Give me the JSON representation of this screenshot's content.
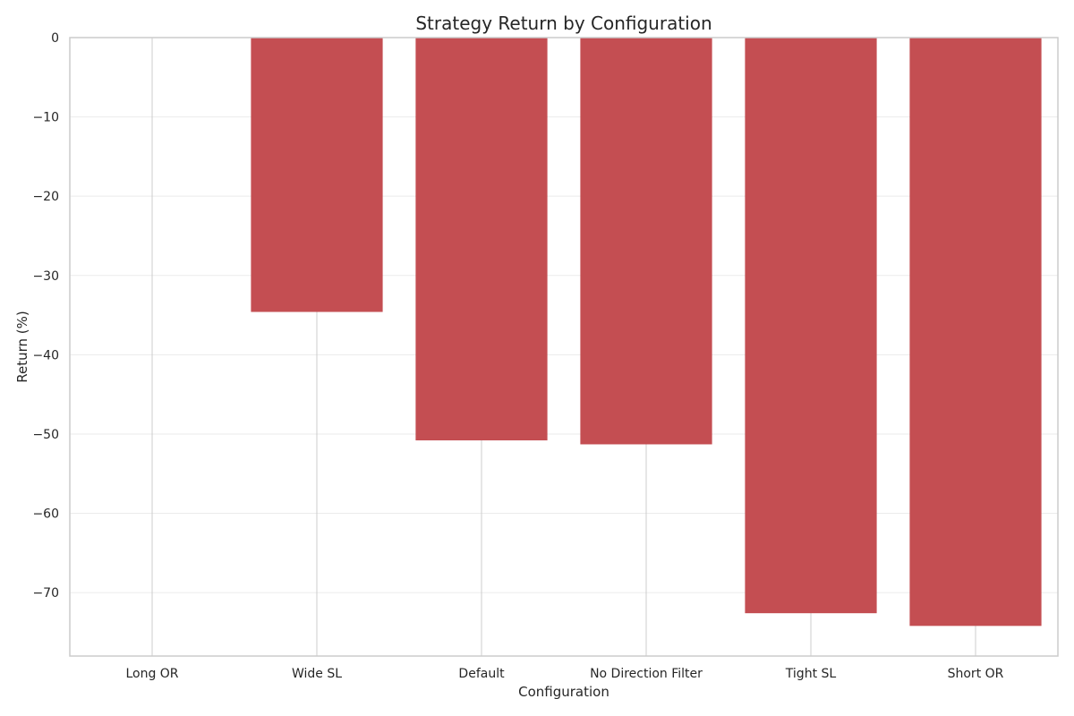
{
  "chart_data": {
    "type": "bar",
    "title": "Strategy Return by Configuration",
    "xlabel": "Configuration",
    "ylabel": "Return (%)",
    "categories": [
      "Long OR",
      "Wide SL",
      "Default",
      "No Direction Filter",
      "Tight SL",
      "Short OR"
    ],
    "values": [
      0,
      -34.6,
      -50.8,
      -51.3,
      -72.6,
      -74.2
    ],
    "ylim": [
      -78,
      0
    ],
    "yticks": [
      0,
      -10,
      -20,
      -30,
      -40,
      -50,
      -60,
      -70
    ],
    "ytick_labels": [
      "0",
      "−10",
      "−20",
      "−30",
      "−40",
      "−50",
      "−60",
      "−70"
    ],
    "grid": true,
    "legend": "none",
    "colors": {
      "bar": "#c44e52",
      "grid": "#ebebeb",
      "spine": "#cccccc",
      "text": "#262626"
    }
  }
}
